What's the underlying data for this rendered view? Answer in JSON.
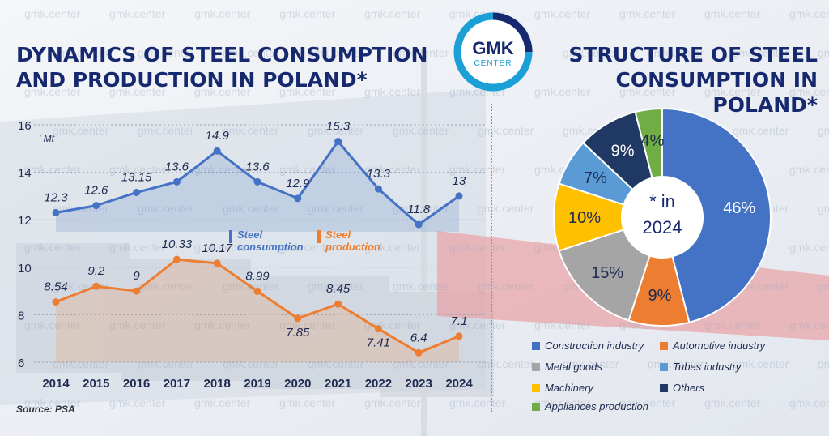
{
  "watermark": "gmk.center",
  "logo": {
    "text_top": "GMK",
    "text_bottom": "CENTER"
  },
  "left_title": "DYNAMICS OF STEEL CONSUMPTION AND PRODUCTION IN POLAND*",
  "right_title": "STRUCTURE OF STEEL CONSUMPTION IN POLAND*",
  "source": "Source: PSA",
  "colors": {
    "title": "#16286e",
    "consumption": "#4472c4",
    "production": "#ed7d31",
    "construction": "#4472c4",
    "automotive": "#ed7d31",
    "metal_goods": "#a5a5a5",
    "tubes": "#5b9bd5",
    "machinery": "#ffc000",
    "others": "#203864",
    "appliances": "#70ad47",
    "logo_ring": "#1a9fd6"
  },
  "chart_data": [
    {
      "type": "line",
      "title": "DYNAMICS OF STEEL CONSUMPTION AND PRODUCTION IN POLAND*",
      "unit_label": "' Mt",
      "x": [
        "2014",
        "2015",
        "2016",
        "2017",
        "2018",
        "2019",
        "2020",
        "2021",
        "2022",
        "2023",
        "2024"
      ],
      "ylim": [
        6,
        16
      ],
      "yticks": [
        6,
        8,
        10,
        12,
        14,
        16
      ],
      "grid": true,
      "series": [
        {
          "name": "Steel consumption",
          "name_lines": [
            "Steel",
            "consumption"
          ],
          "values": [
            12.3,
            12.6,
            13.15,
            13.6,
            14.9,
            13.6,
            12.9,
            15.3,
            13.3,
            11.8,
            13
          ],
          "labels": [
            "12.3",
            "12.6",
            "13.15",
            "13.6",
            "14.9",
            "13.6",
            "12.9",
            "15.3",
            "13.3",
            "11.8",
            "13"
          ]
        },
        {
          "name": "Steel production",
          "name_lines": [
            "Steel",
            "production"
          ],
          "values": [
            8.54,
            9.2,
            9,
            10.33,
            10.17,
            8.99,
            7.85,
            8.45,
            7.41,
            6.4,
            7.1
          ],
          "labels": [
            "8.54",
            "9.2",
            "9",
            "10.33",
            "10.17",
            "8.99",
            "7.85",
            "8.45",
            "7.41",
            "6.4",
            "7.1"
          ]
        }
      ]
    },
    {
      "type": "pie",
      "title": "STRUCTURE OF STEEL CONSUMPTION IN POLAND*",
      "center_label": [
        "* in",
        "2024"
      ],
      "legend_position": "bottom",
      "slices": [
        {
          "name": "Construction industry",
          "value": 46,
          "label": "46%",
          "color_key": "construction"
        },
        {
          "name": "Automotive industry",
          "value": 9,
          "label": "9%",
          "color_key": "automotive"
        },
        {
          "name": "Metal goods",
          "value": 15,
          "label": "15%",
          "color_key": "metal_goods"
        },
        {
          "name": "Machinery",
          "value": 10,
          "label": "10%",
          "color_key": "machinery"
        },
        {
          "name": "Tubes industry",
          "value": 7,
          "label": "7%",
          "color_key": "tubes"
        },
        {
          "name": "Others",
          "value": 9,
          "label": "9%",
          "color_key": "others"
        },
        {
          "name": "Appliances production",
          "value": 4,
          "label": "4%",
          "color_key": "appliances"
        }
      ]
    }
  ]
}
